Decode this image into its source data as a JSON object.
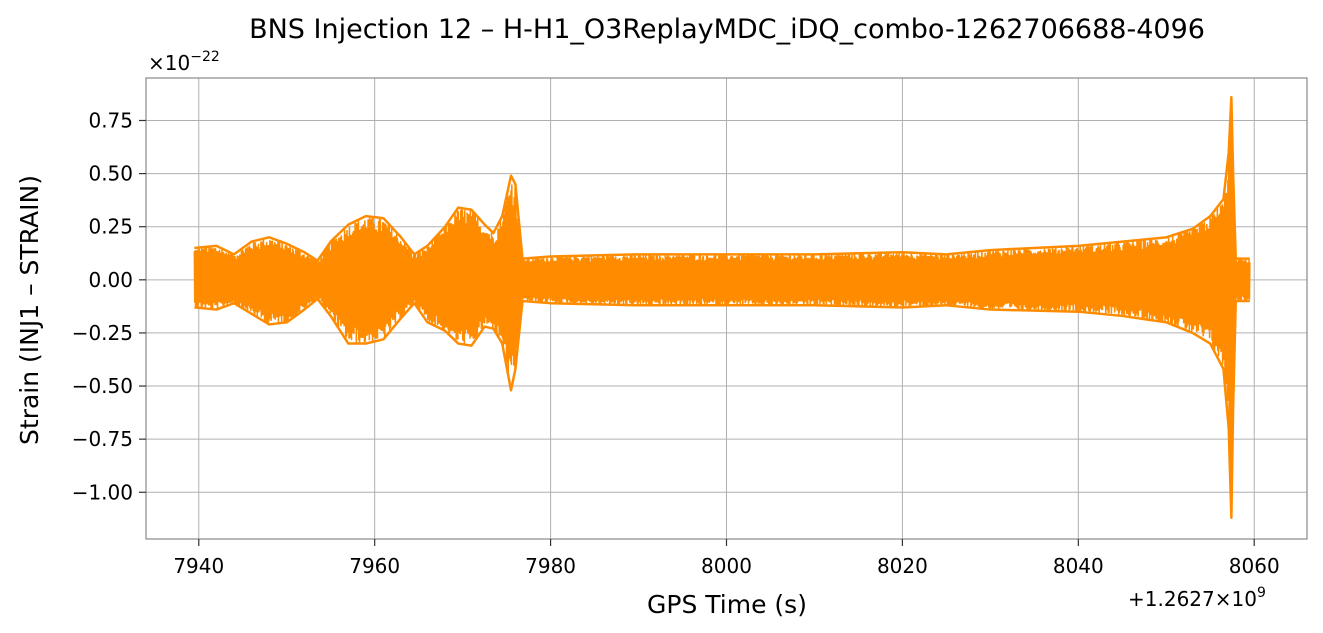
{
  "chart_data": {
    "type": "line",
    "title": "BNS Injection 12 – H-H1_O3ReplayMDC_iDQ_combo-1262706688-4096",
    "xlabel": "GPS Time (s)",
    "ylabel": "Strain (INJ1 – STRAIN)",
    "x_offset_label": "+1.2627×10",
    "x_offset_exponent": "9",
    "y_scale_label": "×10",
    "y_scale_exponent": "−22",
    "xlim": [
      7934,
      8066
    ],
    "ylim": [
      -1.22,
      0.95
    ],
    "xticks": [
      7940,
      7960,
      7980,
      8000,
      8020,
      8040,
      8060
    ],
    "xtick_labels": [
      "7940",
      "7960",
      "7980",
      "8000",
      "8020",
      "8040",
      "8060"
    ],
    "yticks": [
      0.75,
      0.5,
      0.25,
      0.0,
      -0.25,
      -0.5,
      -0.75,
      -1.0
    ],
    "ytick_labels": [
      "0.75",
      "0.50",
      "0.25",
      "0.00",
      "−0.25",
      "−0.50",
      "−0.75",
      "−1.00"
    ],
    "grid": true,
    "series": [
      {
        "color": "#ff8c00",
        "upper_envelope": [
          [
            7939.5,
            0.15
          ],
          [
            7942,
            0.16
          ],
          [
            7944,
            0.12
          ],
          [
            7946,
            0.18
          ],
          [
            7948,
            0.2
          ],
          [
            7950,
            0.17
          ],
          [
            7952,
            0.13
          ],
          [
            7953.5,
            0.09
          ],
          [
            7955,
            0.18
          ],
          [
            7957,
            0.26
          ],
          [
            7959,
            0.3
          ],
          [
            7961,
            0.29
          ],
          [
            7963,
            0.2
          ],
          [
            7964.5,
            0.12
          ],
          [
            7966,
            0.16
          ],
          [
            7968,
            0.25
          ],
          [
            7969.5,
            0.34
          ],
          [
            7971,
            0.33
          ],
          [
            7972.5,
            0.26
          ],
          [
            7973.5,
            0.22
          ],
          [
            7974.5,
            0.3
          ],
          [
            7975.5,
            0.49
          ],
          [
            7976,
            0.45
          ],
          [
            7976.8,
            0.1
          ],
          [
            7980,
            0.11
          ],
          [
            7990,
            0.12
          ],
          [
            8000,
            0.12
          ],
          [
            8010,
            0.12
          ],
          [
            8020,
            0.13
          ],
          [
            8025,
            0.12
          ],
          [
            8030,
            0.14
          ],
          [
            8040,
            0.16
          ],
          [
            8045,
            0.18
          ],
          [
            8050,
            0.2
          ],
          [
            8053,
            0.24
          ],
          [
            8055,
            0.3
          ],
          [
            8056.5,
            0.38
          ],
          [
            8057.1,
            0.6
          ],
          [
            8057.4,
            0.86
          ],
          [
            8057.6,
            0.5
          ],
          [
            8057.9,
            0.1
          ],
          [
            8059.5,
            0.1
          ]
        ],
        "lower_envelope": [
          [
            7939.5,
            -0.13
          ],
          [
            7942,
            -0.14
          ],
          [
            7944,
            -0.11
          ],
          [
            7946,
            -0.16
          ],
          [
            7948,
            -0.21
          ],
          [
            7950,
            -0.2
          ],
          [
            7952,
            -0.14
          ],
          [
            7953.5,
            -0.09
          ],
          [
            7955,
            -0.17
          ],
          [
            7957,
            -0.3
          ],
          [
            7959,
            -0.3
          ],
          [
            7961,
            -0.28
          ],
          [
            7963,
            -0.18
          ],
          [
            7964.5,
            -0.11
          ],
          [
            7966,
            -0.2
          ],
          [
            7968,
            -0.24
          ],
          [
            7969.5,
            -0.3
          ],
          [
            7971,
            -0.31
          ],
          [
            7972.5,
            -0.22
          ],
          [
            7973.5,
            -0.23
          ],
          [
            7974.5,
            -0.3
          ],
          [
            7975.5,
            -0.52
          ],
          [
            7976,
            -0.42
          ],
          [
            7976.8,
            -0.1
          ],
          [
            7980,
            -0.11
          ],
          [
            7990,
            -0.12
          ],
          [
            8000,
            -0.12
          ],
          [
            8010,
            -0.12
          ],
          [
            8020,
            -0.13
          ],
          [
            8025,
            -0.12
          ],
          [
            8030,
            -0.14
          ],
          [
            8040,
            -0.15
          ],
          [
            8045,
            -0.17
          ],
          [
            8050,
            -0.2
          ],
          [
            8053,
            -0.25
          ],
          [
            8055,
            -0.3
          ],
          [
            8056.5,
            -0.42
          ],
          [
            8057.1,
            -0.7
          ],
          [
            8057.4,
            -1.12
          ],
          [
            8057.6,
            -0.6
          ],
          [
            8057.9,
            -0.1
          ],
          [
            8059.5,
            -0.1
          ]
        ]
      }
    ]
  }
}
